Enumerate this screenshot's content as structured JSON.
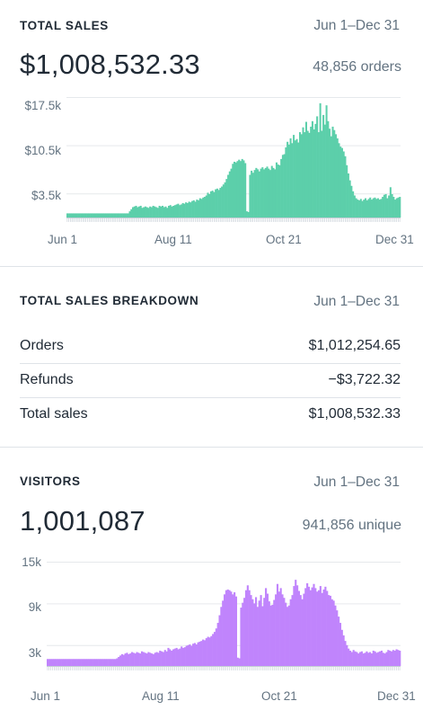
{
  "sales": {
    "title": "TOTAL SALES",
    "range": "Jun 1–Dec 31",
    "total": "$1,008,532.33",
    "orders": "48,856 orders",
    "color": "#5ccfaa",
    "y_ticks": [
      "$17.5k",
      "$10.5k",
      "$3.5k"
    ],
    "x_ticks": [
      "Jun 1",
      "Aug 11",
      "Oct 21",
      "Dec 31"
    ]
  },
  "breakdown": {
    "title": "TOTAL SALES BREAKDOWN",
    "range": "Jun 1–Dec 31",
    "rows": [
      {
        "label": "Orders",
        "value": "$1,012,254.65"
      },
      {
        "label": "Refunds",
        "value": "−$3,722.32"
      },
      {
        "label": "Total sales",
        "value": "$1,008,532.33"
      }
    ]
  },
  "visitors": {
    "title": "VISITORS",
    "range": "Jun 1–Dec 31",
    "total": "1,001,087",
    "unique": "941,856 unique",
    "color": "#c084fc",
    "y_ticks": [
      "15k",
      "9k",
      "3k"
    ],
    "x_ticks": [
      "Jun 1",
      "Aug 11",
      "Oct 21",
      "Dec 31"
    ]
  },
  "chart_data": [
    {
      "type": "bar",
      "ylim": [
        0,
        17500
      ],
      "y_ticks": [
        3500,
        10500,
        17500
      ],
      "x_tick_labels": [
        "Jun 1",
        "Aug 11",
        "Oct 21",
        "Dec 31"
      ],
      "series": [
        {
          "values": [
            600,
            600,
            600,
            600,
            600,
            600,
            600,
            600,
            600,
            600,
            600,
            600,
            600,
            600,
            600,
            600,
            600,
            600,
            600,
            600,
            600,
            600,
            600,
            600,
            600,
            600,
            600,
            600,
            600,
            600,
            600,
            600,
            600,
            600,
            600,
            600,
            600,
            600,
            600,
            600,
            900,
            1200,
            1500,
            1600,
            1700,
            1500,
            1600,
            1700,
            1400,
            1500,
            1600,
            1500,
            1400,
            1600,
            1500,
            1700,
            1600,
            1500,
            1400,
            1700,
            1600,
            1700,
            1500,
            1600,
            1400,
            1700,
            1800,
            1600,
            1700,
            1800,
            1900,
            2000,
            1800,
            1900,
            2100,
            2000,
            2200,
            2100,
            2300,
            2200,
            2400,
            2500,
            2300,
            2600,
            2500,
            2800,
            2700,
            2900,
            3000,
            3200,
            3600,
            3400,
            3800,
            3900,
            3700,
            4100,
            4200,
            4000,
            4300,
            4500,
            4800,
            5100,
            5600,
            6200,
            6700,
            7100,
            7800,
            8100,
            8000,
            8200,
            8400,
            8200,
            8500,
            8300,
            7900,
            900,
            800,
            6200,
            6800,
            6500,
            6900,
            7200,
            7000,
            6700,
            7100,
            7300,
            7000,
            7200,
            7400,
            7100,
            6900,
            7500,
            7200,
            7000,
            8000,
            7700,
            7600,
            8500,
            9100,
            9200,
            10200,
            11000,
            10600,
            11500,
            10800,
            12000,
            11200,
            11400,
            10900,
            12400,
            12100,
            13100,
            12400,
            13900,
            12600,
            12300,
            13200,
            14000,
            12800,
            13600,
            14700,
            12400,
            16600,
            12600,
            14900,
            13500,
            16300,
            14000,
            12900,
            11800,
            13200,
            12700,
            12100,
            11500,
            10800,
            10300,
            10100,
            9600,
            8900,
            7600,
            6400,
            5400,
            4600,
            3800,
            3200,
            2800,
            2600,
            2500,
            2700,
            2400,
            2600,
            2800,
            2500,
            2700,
            2900,
            2600,
            2800,
            2900,
            2700,
            2800,
            2600,
            2700,
            3000,
            3300,
            3400,
            2800,
            3200,
            4400,
            3400,
            3000,
            2600,
            2800,
            2900,
            3000
          ]
        }
      ]
    },
    {
      "type": "bar",
      "ylim": [
        0,
        15000
      ],
      "y_ticks": [
        3000,
        9000,
        15000
      ],
      "x_tick_labels": [
        "Jun 1",
        "Aug 11",
        "Oct 21",
        "Dec 31"
      ],
      "series": [
        {
          "values": [
            1000,
            1000,
            1000,
            1000,
            1000,
            1000,
            1000,
            1000,
            1000,
            1000,
            1000,
            1000,
            1000,
            1000,
            1000,
            1000,
            1000,
            1000,
            1000,
            1000,
            1000,
            1000,
            1000,
            1000,
            1000,
            1000,
            1000,
            1000,
            1000,
            1000,
            1000,
            1000,
            1000,
            1000,
            1000,
            1000,
            1000,
            1000,
            1000,
            1000,
            1000,
            1000,
            1100,
            1300,
            1500,
            1700,
            1600,
            1800,
            1900,
            1700,
            1800,
            2000,
            1900,
            1800,
            2000,
            1900,
            1800,
            2100,
            2000,
            1900,
            1800,
            2000,
            1900,
            1800,
            1700,
            1900,
            2000,
            1900,
            2200,
            2100,
            2000,
            2300,
            2100,
            2600,
            2400,
            2200,
            2400,
            2500,
            2600,
            2400,
            2500,
            2800,
            2600,
            2700,
            2900,
            3000,
            3100,
            2900,
            3200,
            3300,
            3100,
            3400,
            3500,
            3600,
            3800,
            3700,
            4000,
            4200,
            4100,
            4300,
            4600,
            4900,
            5400,
            6200,
            7300,
            8500,
            9400,
            10300,
            10900,
            11000,
            10900,
            10700,
            10300,
            10600,
            10000,
            1200,
            1100,
            8400,
            9100,
            9800,
            10900,
            11600,
            10900,
            10200,
            9600,
            9000,
            9900,
            8500,
            9400,
            10200,
            8600,
            9800,
            11200,
            10400,
            9300,
            8700,
            8800,
            9500,
            10300,
            11800,
            10700,
            11200,
            10300,
            9800,
            9100,
            8500,
            8700,
            9600,
            10200,
            11500,
            12400,
            11600,
            10800,
            10200,
            9600,
            10400,
            11200,
            11900,
            11400,
            10900,
            11300,
            11800,
            11200,
            10700,
            10900,
            11500,
            10500,
            11000,
            11400,
            10800,
            10200,
            10100,
            9600,
            9400,
            8700,
            8000,
            7100,
            6200,
            5200,
            4400,
            3600,
            3000,
            2500,
            2200,
            2000,
            2300,
            2100,
            2000,
            1800,
            2000,
            2100,
            1800,
            1900,
            2100,
            1900,
            2000,
            1800,
            2200,
            2100,
            1900,
            2000,
            2100,
            2200,
            1900,
            1800,
            2000,
            2300,
            2200,
            2100,
            2300,
            2200,
            2400,
            2300,
            2200
          ]
        }
      ]
    }
  ]
}
